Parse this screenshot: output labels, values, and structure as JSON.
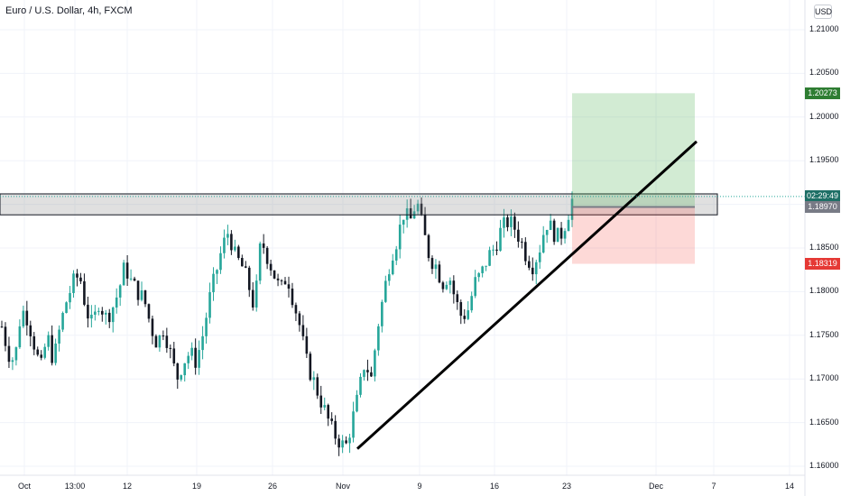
{
  "header": {
    "title": "Euro / U.S. Dollar, 4h, FXCM",
    "currency": "USD"
  },
  "colors": {
    "up": "#26a69a",
    "down": "#131722",
    "target": "#2e7d32",
    "stop": "#e53935",
    "zone": "#8f8f8f"
  },
  "chart_data": {
    "type": "candlestick",
    "x_ticks": [
      "Oct",
      "13:00",
      "12",
      "19",
      "26",
      "Nov",
      "9",
      "16",
      "23",
      "Dec",
      "7",
      "14"
    ],
    "y_ticks": [
      "1.21000",
      "1.20500",
      "1.20000",
      "1.19500",
      "1.19000",
      "1.18500",
      "1.18000",
      "1.17500",
      "1.17000",
      "1.16500",
      "1.16000"
    ],
    "ylim": [
      1.1595,
      1.2138
    ],
    "badges": [
      {
        "name": "target-price-badge",
        "label": "1.20273",
        "value": 1.20273,
        "color": "#2e7d32"
      },
      {
        "name": "countdown-badge",
        "label": "02:29:49",
        "value": 1.1909,
        "color": "#1e6f66"
      },
      {
        "name": "last-price-badge",
        "label": "1.18970",
        "value": 1.1897,
        "color": "#787b86"
      },
      {
        "name": "stop-price-badge",
        "label": "1.18319",
        "value": 1.18319,
        "color": "#e53935"
      }
    ],
    "resistance_zone": {
      "top": 1.1912,
      "bottom": 1.1888
    },
    "position": {
      "entry": 1.1897,
      "target": 1.20273,
      "stop": 1.18319
    },
    "trendline": {
      "start": 1.162,
      "end": 1.1972
    },
    "price_path": [
      1.176,
      1.173,
      1.172,
      1.178,
      1.177,
      1.174,
      1.171,
      1.175,
      1.172,
      1.176,
      1.179,
      1.181,
      1.182,
      1.178,
      1.176,
      1.179,
      1.177,
      1.178,
      1.18,
      1.183,
      1.181,
      1.18,
      1.179,
      1.176,
      1.174,
      1.176,
      1.173,
      1.17,
      1.172,
      1.173,
      1.172,
      1.175,
      1.179,
      1.182,
      1.185,
      1.187,
      1.184,
      1.183,
      1.181,
      1.178,
      1.186,
      1.184,
      1.182,
      1.18,
      1.182,
      1.179,
      1.176,
      1.172,
      1.17,
      1.168,
      1.166,
      1.164,
      1.163,
      1.162,
      1.165,
      1.168,
      1.172,
      1.17,
      1.176,
      1.18,
      1.184,
      1.186,
      1.189,
      1.188,
      1.1905,
      1.187,
      1.184,
      1.183,
      1.181,
      1.182,
      1.179,
      1.177,
      1.178,
      1.181,
      1.182,
      1.184,
      1.185,
      1.187,
      1.188,
      1.1875,
      1.186,
      1.184,
      1.183,
      1.185,
      1.188,
      1.187,
      1.186,
      1.188,
      1.1905
    ]
  }
}
